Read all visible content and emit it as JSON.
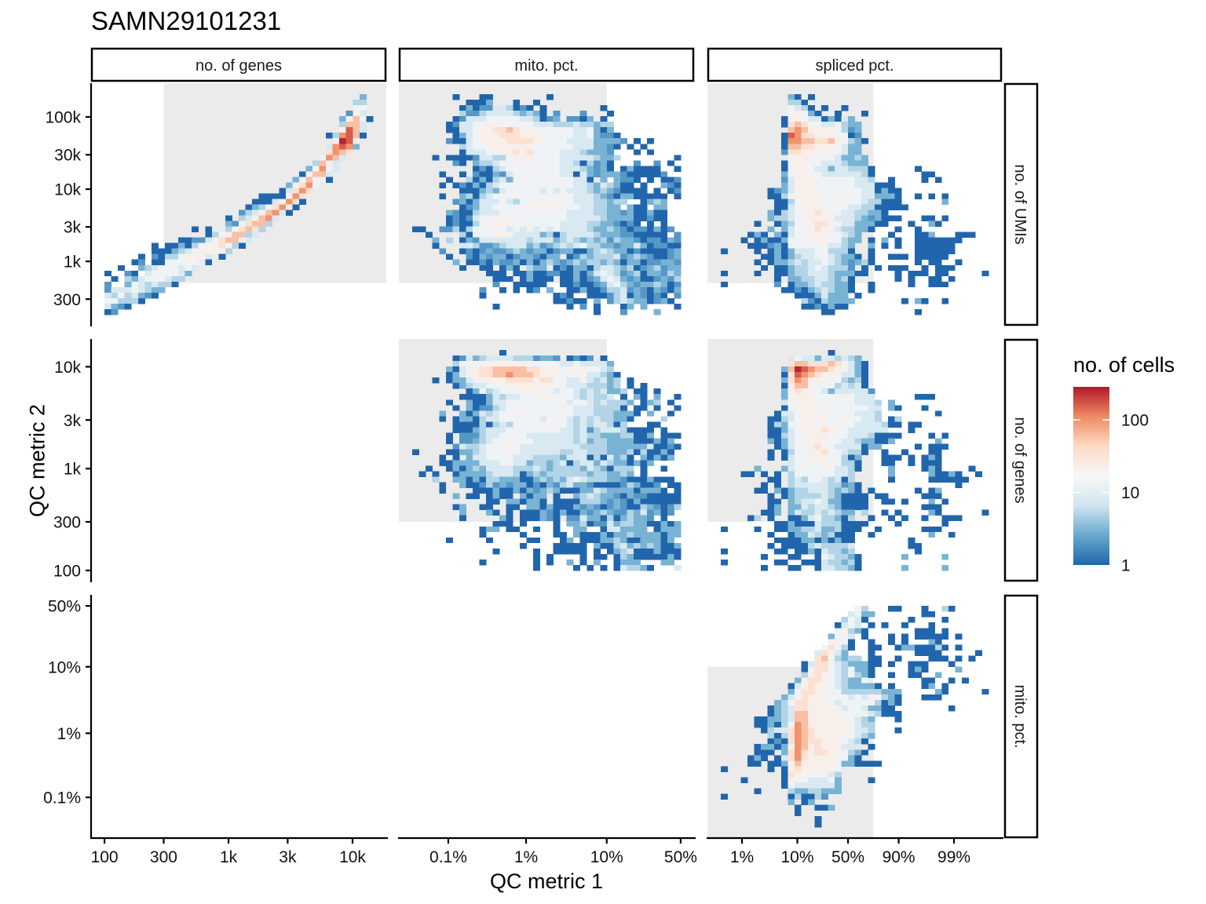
{
  "chart_data": {
    "type": "heatmap",
    "title": "SAMN29101231",
    "xlabel": "QC metric 1",
    "ylabel": "QC metric 2",
    "grid": false,
    "bins": 40,
    "pass_region_color": "#ebebeb",
    "legend": {
      "title": "no. of cells",
      "position": "right",
      "scale": "log10",
      "range": [
        1,
        285
      ],
      "palette": [
        "#2166ac",
        "#67a9cf",
        "#d1e5f0",
        "#f7f7f7",
        "#fddbc7",
        "#ef8a62",
        "#b2182b"
      ],
      "ticks": [
        {
          "value": 1,
          "label": "1"
        },
        {
          "value": 10,
          "label": "10"
        },
        {
          "value": 100,
          "label": "100"
        }
      ]
    },
    "metrics": {
      "genes": {
        "label": "no. of genes",
        "scale": "log10",
        "range": [
          100,
          14590
        ],
        "ticks": [
          {
            "value": 100,
            "label": "100"
          },
          {
            "value": 300,
            "label": "300"
          },
          {
            "value": 1000,
            "label": "1k"
          },
          {
            "value": 3000,
            "label": "3k"
          },
          {
            "value": 10000,
            "label": "10k"
          }
        ]
      },
      "umis": {
        "label": "no. of UMIs",
        "scale": "log10",
        "range": [
          183,
          206500
        ],
        "ticks": [
          {
            "value": 300,
            "label": "300"
          },
          {
            "value": 1000,
            "label": "1k"
          },
          {
            "value": 3000,
            "label": "3k"
          },
          {
            "value": 10000,
            "label": "10k"
          },
          {
            "value": 30000,
            "label": "30k"
          },
          {
            "value": 100000,
            "label": "100k"
          }
        ]
      },
      "mito": {
        "label": "mito. pct.",
        "scale": "logit",
        "range": [
          0.000343,
          0.5
        ],
        "ticks": [
          {
            "value": 0.001,
            "label": "0.1%"
          },
          {
            "value": 0.01,
            "label": "1%"
          },
          {
            "value": 0.1,
            "label": "10%"
          },
          {
            "value": 0.5,
            "label": "50%"
          }
        ]
      },
      "spliced": {
        "label": "spliced pct.",
        "scale": "logit",
        "range": [
          0.00401,
          0.99774
        ],
        "ticks": [
          {
            "value": 0.01,
            "label": "1%"
          },
          {
            "value": 0.1,
            "label": "10%"
          },
          {
            "value": 0.5,
            "label": "50%"
          },
          {
            "value": 0.9,
            "label": "90%"
          },
          {
            "value": 0.99,
            "label": "99%"
          }
        ]
      }
    },
    "columns": [
      "genes",
      "mito",
      "spliced"
    ],
    "rows": [
      "umis",
      "genes",
      "mito"
    ],
    "thresholds": {
      "genes": {
        "min": 300
      },
      "umis": {
        "min": 500
      },
      "mito": {
        "max": 0.1
      },
      "spliced": {
        "max": 0.75
      }
    },
    "count_levels": {
      "1": 1,
      "2": 2,
      "3": 3,
      "4": 5,
      "5": 8,
      "6": 14,
      "7": 22,
      "8": 35,
      "9": 60,
      "a": 100,
      "b": 160,
      "c": 260
    },
    "cell_encoding": "each row (top to bottom) is 'startBin:codes'; each code is one bin, '.' = 0 cells, other codes map via count_levels",
    "panels": [
      {
        "x": "genes",
        "y": "umis",
        "cells": [
          "38:3",
          "37:44",
          "37:66",
          "36:275",
          "35:37961",
          "35:4995",
          "35:7b95",
          "33:14ab91",
          "34:7cb7",
          "33:5aba3",
          "33:8a98",
          "32:6a95",
          "31:4975",
          "30:37a65",
          "29:16995",
          "28:369761",
          "27:368a6",
          "26:158a8",
          "23:11117a8",
          "22:11157a81",
          "21:13468a71",
          "20:24579a51",
          "18:1.4579a5",
          "18:3268994",
          "13:1.1..468984",
          "15:14679945",
          "11:11225789965",
          "7:1.113146678741",
          "7:111345677764",
          "5:1.214467775.1",
          "4:12.1166666.1",
          "2:1..345666565",
          "0:1..21.5666653",
          "1:1.435666544",
          "0:2..36545441",
          "0:255565433",
          "0:54645321",
          "0:664441",
          "0:5321",
          "0:12"
        ]
      },
      {
        "x": "mito",
        "y": "umis",
        "cells": [
          "6:1...11........1",
          "8:1113...1..1",
          "7:13122554121.1........1",
          "7:4224555543431.2...2...1",
          "6:1255566666554123.2213.1",
          "5:1255667766666555444544344",
          "5:1155677889877676666556313",
          "6:1356777888777666665563221",
          "5:211567777888877666555533332.1.1",
          "7:456677777776666665553321.1.1",
          "7:15556677878666655543332...1.1",
          "3:1.11112554467776666555554334........1",
          "6:21.344566766666655414231...2..2.1",
          "9:121456666666655543231.131111..1",
          "4:1..1.21132566667665515323332111112",
          "5:1..4131453666666666551.3.3221.1.112",
          "4:1.121314566666666666554354311.1..321",
          "7:1113435666665656555434321111.1.12",
          "4:1..3414567676666666655543213311111.1",
          "6:23135556546677676655544344..1343",
          "7:123556666677777666554433.311.33",
          "5:321145556666666666555544332311311",
          "5:121256677666666666555554333311211",
          "5:12114667776666666555544332121.1.1",
          "0:11..22414666665656565655554334321221312",
          "2:1....4166677655553414555543332211111.2",
          "3:3.4.132555555545553454343424332122132",
          "3:1...554223455534234545644332335312211",
          "4:2..121232234323312331134543312111123",
          "5:1..21323312332133.12434445234321123",
          "6:3.11213223131343234344343133122332",
          "7:1..11.131.433.1213314554341234233",
          "11:111.1131122113135654234133243",
          "12:111.13111.113123565323112324",
          "12:2..11111..112112356432334312",
          "10:2..1.1.12.3..11311244523213213",
          "10:1..........121..111245132121.2",
          "21:11211.3.2454331231",
          "12:1..........1.2.1...13.3....1",
          "27:1...2....3"
        ]
      },
      {
        "x": "spliced",
        "y": "umis",
        "cells": [
          "10:31.1",
          "10:441",
          "10:6541.1..1",
          "10:67631..1...1",
          "9:17765513153",
          "9:189866556433",
          "10:9a977776423",
          "9:1ba887776612",
          "9:1aa9988976431",
          "9:199887776533",
          "9:288777766533",
          "10:677766653343",
          "9:1677665554333",
          "9:16776553554441......1",
          "9:36776655555541.......11",
          "9:25777666676554..1....1.1",
          "9:35777666666555111",
          "7:12357776666666551311",
          "7:11467777667666553331..1.1.1",
          "8:1146777666666544111......3",
          "8:11567777666554411111",
          "7:314567787665544331",
          "7:34456777765554323111...11.1",
          "5:1..13466788765533311...1..31",
          "7:3.35667876544331...1..1",
          "4:131.3156677766543....1...113...111",
          "3:1.1311366667766433.1.3.1..1111111",
          "4:1112316666665543..3.1.1..111111",
          "0:1....1.1313555664441..1......111111",
          "6:113134556654331.1..111.11111",
          "5:1.1334545565432341......1.11..1",
          "6:1.113445654442.1.1.111..1.111",
          "0:1....1..11344555433311....1.111.11.....1",
          "8:1.3344554341......1.1..11.1",
          "0:1.......2.1334544331..1.....1..111",
          "9:11213454331..1",
          "11:11135333.1",
          "12:42143333.......1.31..1",
          "12:1121311",
          "15:11............1"
        ]
      },
      {
        "x": "mito",
        "y": "genes",
        "cells": [
          "13:1",
          "6:1253455554442332.1212.1",
          "6:466667777776666655655553",
          "5:3156788999998877766776654",
          "5:135678899a9998776666655431",
          "3:1.13356677788887886655654534.1",
          "6:1345566677777676655544434.1.1",
          "8:136456667776656654545334.11.1",
          "7:11113545566677666545445.1.31.3..1",
          "5:1..3113556666666665665454443.134.1",
          "6:1.312245666666667655544441.11.1..1",
          "4:3..313545667676666665554443331.3..1",
          "4:1.133145566666656665454544331....4",
          "6:11114145466667766545455414...11",
          "6:111345556666666655452455541111.1",
          "5:1.22245566665555555454433344113.111",
          "5:1.22345667666555555453443333111313",
          "6:2544566666555555555444433333351121",
          "0:1....1133456667655555544554443334141131",
          "4:1.1.3556666555444435551415341.31313",
          "4:11333355566553443451455354331313",
          "2:1..1313435555444543444435431444.1..1",
          "1:1.1..133334555413434444443443343.1",
          "3:4..331314433311343435654443321113111",
          "4:1..311242323312132453321111243112.11",
          "4:1....11131131323431113354333313331.1",
          "6:3.11.1311.3133.1..3454332132211111",
          "11:11.331331.1111444323213111111",
          "6:13..11..11.33131113232123211432124",
          "7:3...31.1.11132131132343224352312",
          "7:1.....31.111321.2253314134332.1",
          "12:111.1....1.33412253443311313",
          "10:133.11..1..1..33..1553333.1333",
          "10:1.....1....11.3111313343333133",
          "5:1.....1.....11...13.11133431133313",
          "16:1....11111.3114534343113",
          "12:1.....1..11111.1.13451113111",
          "18:1.1....1.11.1431111131",
          "10:1.......1.1..3.1.3..1333...33",
          "18:1.....1.1.1.154431...5"
        ]
      },
      {
        "x": "spliced",
        "y": "genes",
        "cells": [
          "16:1",
          "10:56553554543",
          "10:899888987531",
          "9:39cba99876531",
          "9:18ba987775531",
          "9:38a9776664341",
          "9:1799766645451",
          "9:37877653555552",
          "9:36777666676555......111",
          "9:567776666665554.3",
          "9:167777666666655.31...1",
          "8:1556776676665554........1",
          "7:11456777766766554.14",
          "7:14366776766665555411.11",
          "7:113567778766555555...1",
          "7:11456677766655541111....1.1",
          "7:3135667776655433113......3",
          "8:1356678665555133.....1.111",
          "7:1.1466778665441..1..1...11",
          "7:1.156677766413...111.1.131",
          "10:56666766441...11..1.111",
          "5:3...356666765541....3....131....1",
          "3:11.1.1.4666666554.....3.....31131..1",
          "7:11.4546654514.....1.....111111",
          "6:1.1.45555544231..............1",
          "5:11.3134455543431.1......1.13",
          "7:1.1344445431111.11.....111",
          "7:11.345565331111..11.1...3.1",
          "7:13.335455431111........111",
          "6:113.3544545433.4..1.1....31......1",
          "4:14.1..1135644314..1..1.1..1..111",
          "8:11311154441111....1......1",
          "0:1....1..1133445334111..1......111",
          "7:1..1335434111..1........3..1",
          "8:111133131311........1",
          "7:1.11114544445........11",
          "0:1.......11.113154434.........1",
          "6:1...11..1654431......3.....3",
          "0:1.......11..111544341",
          "6:1...11..1554431......3.....3"
        ]
      },
      {
        "x": "spliced",
        "y": "mito",
        "cells": [
          "20:64...11...1..41",
          "19:5633.......11",
          "18:4651......1....1",
          "17:1565.1.1..1...1",
          "17:67431.......111.1",
          "16:3665.1...1.1.11111.1",
          "16:7761..1..1.1...31",
          "15:68641..11..13311141.1",
          "14:58753...1......1111.....1",
          "14:8964344.11..1....111.1.1",
          "12:158865433311.1..111...1",
          "12:16886546331.....131....3",
          "12:47876546431..1..11..3",
          "11:37887654336........11..1.1",
          "10:15787765433331.1....13.1",
          "10:36887776444444333.....31.....1",
          "9:356877666656576431...111",
          "8:3468877765666664131",
          "7:1345887776756653311........1",
          "7:13459977776666654111",
          "5:113345997777776543...1",
          "5:113146a97777776544",
          "6:14558a98777776554...1",
          "7:4148a98777766543",
          "7:1218a9887776541",
          "5:133137a978777555.1",
          "5:111.38a8788776431",
          "4:131.158a877776631",
          "4:11.11379777776331111",
          "0:1......1.178777776",
          "9:187666654",
          "3:1.....176655563....1",
          "9:165555553",
          "5:1....43344333",
          "0:1.........141142",
          "10:3.13",
          "11:1..113",
          "11:1",
          "14:1",
          "14:1"
        ]
      }
    ]
  }
}
